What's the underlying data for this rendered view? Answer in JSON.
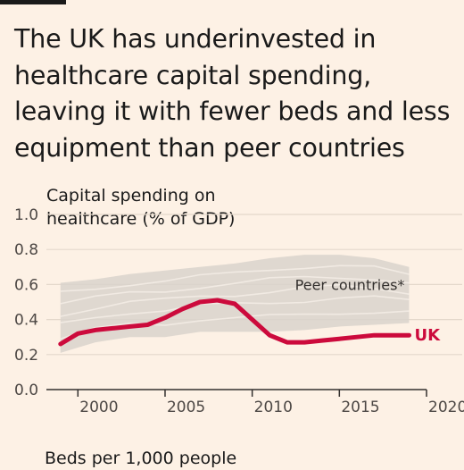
{
  "headline": "The UK has underinvested in healthcare capital spending, leaving it with fewer beds and less equipment than peer countries",
  "colors": {
    "uk": "#cc0a3c",
    "peer_band": "#d9d3cc",
    "peer_lines": "#f3ece4",
    "background": "#fdf1e5"
  },
  "chart_data": {
    "type": "line",
    "title": "Capital spending on healthcare (% of GDP)",
    "xlabel": "",
    "ylabel": "",
    "xlim": [
      1998.5,
      2020
    ],
    "ylim": [
      0,
      1.0
    ],
    "x_ticks": [
      2000,
      2005,
      2010,
      2015,
      2020
    ],
    "y_ticks": [
      "0.0",
      "0.2",
      "0.4",
      "0.6",
      "0.8",
      "1.0"
    ],
    "grid": true,
    "band": {
      "name": "Peer countries*",
      "x": [
        1999,
        2001,
        2003,
        2005,
        2007,
        2009,
        2011,
        2013,
        2015,
        2017,
        2019
      ],
      "upper": [
        0.61,
        0.63,
        0.66,
        0.68,
        0.7,
        0.72,
        0.75,
        0.77,
        0.77,
        0.75,
        0.7
      ],
      "lower": [
        0.21,
        0.27,
        0.3,
        0.3,
        0.33,
        0.33,
        0.33,
        0.34,
        0.36,
        0.37,
        0.38
      ]
    },
    "series": [
      {
        "name": "UK",
        "x": [
          1999,
          2000,
          2001,
          2002,
          2003,
          2004,
          2005,
          2006,
          2007,
          2008,
          2009,
          2010,
          2011,
          2012,
          2013,
          2014,
          2015,
          2016,
          2017,
          2018,
          2019
        ],
        "values": [
          0.26,
          0.32,
          0.34,
          0.35,
          0.36,
          0.37,
          0.41,
          0.46,
          0.5,
          0.51,
          0.49,
          0.4,
          0.31,
          0.27,
          0.27,
          0.28,
          0.29,
          0.3,
          0.31,
          0.31,
          0.31
        ]
      }
    ]
  },
  "next_chart_title": "Beds per 1,000 people"
}
